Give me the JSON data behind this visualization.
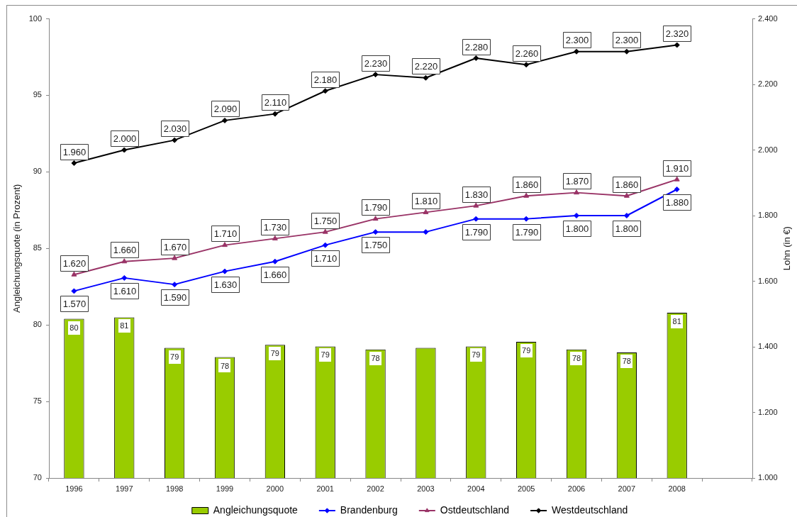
{
  "chart_data": {
    "type": "bar",
    "categories": [
      "1996",
      "1997",
      "1998",
      "1999",
      "2000",
      "2001",
      "2002",
      "2003",
      "2004",
      "2005",
      "2006",
      "2007",
      "2008",
      null
    ],
    "ylabel": "Angleichungsquote (in Prozent)",
    "y2label": "Lohn (in €)",
    "ylim": [
      70,
      100
    ],
    "yticks": [
      70,
      75,
      80,
      85,
      90,
      95,
      100
    ],
    "y2lim": [
      1000,
      2400
    ],
    "y2ticks": [
      {
        "value": 1000,
        "label": "1.000"
      },
      {
        "value": 1200,
        "label": "1.200"
      },
      {
        "value": 1400,
        "label": "1.400"
      },
      {
        "value": 1600,
        "label": "1.600"
      },
      {
        "value": 1800,
        "label": "1.800"
      },
      {
        "value": 2000,
        "label": "2.000"
      },
      {
        "value": 2200,
        "label": "2.200"
      },
      {
        "value": 2400,
        "label": "2.400"
      }
    ],
    "grid": false,
    "legend": "bottom",
    "series": [
      {
        "name": "Angleichungsquote",
        "color": "#99cc00",
        "values": [
          80.4,
          80.5,
          78.5,
          77.9,
          78.7,
          78.6,
          78.4,
          78.5,
          78.6,
          78.9,
          78.4,
          78.2,
          80.8,
          null
        ],
        "value_labels": [
          "80",
          "81",
          "79",
          "78",
          "79",
          "79",
          "78",
          null,
          "79",
          "79",
          "78",
          "78",
          "81",
          null
        ]
      },
      {
        "name": "Brandenburg",
        "type": "line",
        "axis": "y2",
        "color": "#0000ff",
        "marker": "diamond",
        "values": [
          1570,
          1610,
          1590,
          1630,
          1660,
          1710,
          1750,
          1750,
          1790,
          1790,
          1800,
          1800,
          1880,
          null
        ],
        "value_labels": [
          "1.570",
          "1.610",
          "1.590",
          "1.630",
          "1.660",
          "1.710",
          "1.750",
          null,
          "1.790",
          "1.790",
          "1.800",
          "1.800",
          "1.880",
          null
        ]
      },
      {
        "name": "Ostdeutschland",
        "type": "line",
        "axis": "y2",
        "color": "#993366",
        "marker": "triangle",
        "values": [
          1620,
          1660,
          1670,
          1710,
          1730,
          1750,
          1790,
          1810,
          1830,
          1860,
          1870,
          1860,
          1910,
          null
        ],
        "value_labels": [
          "1.620",
          "1.660",
          "1.670",
          "1.710",
          "1.730",
          "1.750",
          "1.790",
          "1.810",
          "1.830",
          "1.860",
          "1.870",
          "1.860",
          "1.910",
          null
        ]
      },
      {
        "name": "Westdeutschland",
        "type": "line",
        "axis": "y2",
        "color": "#000000",
        "marker": "diamond",
        "values": [
          1960,
          2000,
          2030,
          2090,
          2110,
          2180,
          2230,
          2220,
          2280,
          2260,
          2300,
          2300,
          2320,
          null
        ],
        "value_labels": [
          "1.960",
          "2.000",
          "2.030",
          "2.090",
          "2.110",
          "2.180",
          "2.230",
          "2.220",
          "2.280",
          "2.260",
          "2.300",
          "2.300",
          "2.320",
          null
        ]
      }
    ]
  }
}
